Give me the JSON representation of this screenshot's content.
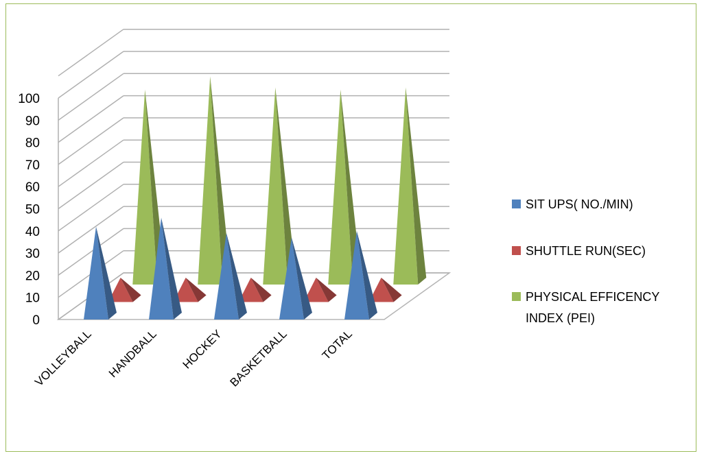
{
  "chart_data": {
    "type": "bar",
    "style": "3d-pyramid",
    "categories": [
      "VOLLEYBALL",
      "HANDBALL",
      "HOCKEY",
      "BASKETBALL",
      "TOTAL"
    ],
    "series": [
      {
        "name": "SIT UPS( NO./MIN)",
        "values": [
          42,
          46,
          39,
          37,
          40
        ],
        "color": "#4f81bd"
      },
      {
        "name": "SHUTTLE RUN(SEC)",
        "values": [
          11,
          11,
          11,
          11,
          11
        ],
        "color": "#c0504d"
      },
      {
        "name": "PHYSICAL EFFICENCY INDEX  (PEI)",
        "values": [
          88,
          94,
          89,
          88,
          89
        ],
        "color": "#9bbb59"
      }
    ],
    "ylim": [
      0,
      100
    ],
    "yticks": [
      0,
      10,
      20,
      30,
      40,
      50,
      60,
      70,
      80,
      90,
      100
    ],
    "grid": true,
    "legend_position": "right"
  },
  "legend": {
    "items": [
      {
        "label": "SIT UPS( NO./MIN)",
        "color": "#4f81bd"
      },
      {
        "label": "SHUTTLE RUN(SEC)",
        "color": "#c0504d"
      },
      {
        "label_line1": "PHYSICAL EFFICENCY",
        "label_line2": "INDEX  (PEI)",
        "color": "#9bbb59"
      }
    ]
  }
}
